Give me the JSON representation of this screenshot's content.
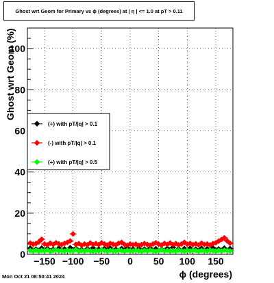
{
  "title": "Ghost wrt Geom for Primary vs ϕ (degrees) at |  η | <= 1.0 at pT > 0.11",
  "timestamp": "Mon Oct 21 08:50:41 2024",
  "chart_data": {
    "type": "scatter",
    "xlabel": "ϕ (degrees)",
    "ylabel": "Ghost wrt Geom (%)",
    "xlim": [
      -180,
      180
    ],
    "ylim": [
      0,
      110
    ],
    "x_ticks": [
      -150,
      -100,
      -50,
      0,
      50,
      100,
      150
    ],
    "y_ticks": [
      0,
      20,
      40,
      60,
      80,
      100
    ],
    "grid": true,
    "legend_position": "middle-left",
    "series": [
      {
        "name": "(+) with pT/|q| > 0.1",
        "color": "#000000",
        "marker": "diamond",
        "values": [
          [
            -175,
            3.0
          ],
          [
            -165,
            2.5
          ],
          [
            -155,
            3.0
          ],
          [
            -145,
            2.8
          ],
          [
            -135,
            2.4
          ],
          [
            -125,
            3.0
          ],
          [
            -115,
            2.6
          ],
          [
            -105,
            3.2
          ],
          [
            -95,
            2.9
          ],
          [
            -85,
            2.3
          ],
          [
            -75,
            2.7
          ],
          [
            -65,
            3.1
          ],
          [
            -55,
            2.5
          ],
          [
            -45,
            2.8
          ],
          [
            -35,
            3.0
          ],
          [
            -25,
            2.4
          ],
          [
            -15,
            2.8
          ],
          [
            -5,
            3.1
          ],
          [
            5,
            2.6
          ],
          [
            15,
            2.9
          ],
          [
            25,
            2.5
          ],
          [
            35,
            3.0
          ],
          [
            45,
            2.7
          ],
          [
            55,
            2.4
          ],
          [
            65,
            2.9
          ],
          [
            75,
            3.4
          ],
          [
            85,
            2.6
          ],
          [
            95,
            2.8
          ],
          [
            105,
            3.0
          ],
          [
            115,
            2.5
          ],
          [
            125,
            2.9
          ],
          [
            135,
            2.7
          ],
          [
            145,
            3.1
          ],
          [
            155,
            2.6
          ],
          [
            165,
            3.0
          ],
          [
            175,
            2.8
          ]
        ]
      },
      {
        "name": "(-) with pT/|q| > 0.1",
        "color": "#ff0000",
        "marker": "diamond",
        "values": [
          [
            -175,
            5.5
          ],
          [
            -170,
            4.9
          ],
          [
            -165,
            5.2
          ],
          [
            -160,
            6.0
          ],
          [
            -155,
            7.3
          ],
          [
            -150,
            5.0
          ],
          [
            -145,
            4.6
          ],
          [
            -140,
            5.4
          ],
          [
            -135,
            4.8
          ],
          [
            -130,
            5.6
          ],
          [
            -125,
            5.1
          ],
          [
            -120,
            4.7
          ],
          [
            -115,
            5.3
          ],
          [
            -110,
            5.8
          ],
          [
            -105,
            6.5
          ],
          [
            -100,
            9.9
          ],
          [
            -95,
            4.8
          ],
          [
            -90,
            5.2
          ],
          [
            -85,
            4.4
          ],
          [
            -80,
            5.0
          ],
          [
            -75,
            4.6
          ],
          [
            -70,
            5.5
          ],
          [
            -65,
            4.8
          ],
          [
            -60,
            5.2
          ],
          [
            -55,
            4.7
          ],
          [
            -50,
            5.6
          ],
          [
            -45,
            5.0
          ],
          [
            -40,
            4.5
          ],
          [
            -35,
            5.3
          ],
          [
            -30,
            4.9
          ],
          [
            -25,
            4.6
          ],
          [
            -20,
            5.4
          ],
          [
            -15,
            5.8
          ],
          [
            -10,
            4.8
          ],
          [
            -5,
            4.4
          ],
          [
            0,
            5.0
          ],
          [
            5,
            4.6
          ],
          [
            10,
            4.9
          ],
          [
            15,
            4.3
          ],
          [
            20,
            4.7
          ],
          [
            25,
            5.2
          ],
          [
            30,
            4.8
          ],
          [
            35,
            4.4
          ],
          [
            40,
            5.0
          ],
          [
            45,
            5.6
          ],
          [
            50,
            4.9
          ],
          [
            55,
            4.5
          ],
          [
            60,
            5.3
          ],
          [
            65,
            4.8
          ],
          [
            70,
            5.5
          ],
          [
            75,
            4.7
          ],
          [
            80,
            5.2
          ],
          [
            85,
            4.6
          ],
          [
            90,
            5.0
          ],
          [
            95,
            5.8
          ],
          [
            100,
            4.9
          ],
          [
            105,
            5.3
          ],
          [
            110,
            4.7
          ],
          [
            115,
            5.1
          ],
          [
            120,
            4.6
          ],
          [
            125,
            5.4
          ],
          [
            130,
            4.8
          ],
          [
            135,
            5.0
          ],
          [
            140,
            4.5
          ],
          [
            145,
            5.2
          ],
          [
            150,
            5.6
          ],
          [
            155,
            6.4
          ],
          [
            160,
            7.2
          ],
          [
            165,
            8.0
          ],
          [
            170,
            6.5
          ],
          [
            175,
            5.4
          ]
        ]
      },
      {
        "name": "(+) with pT/|q| > 0.5",
        "color": "#00ff00",
        "marker": "diamond",
        "values": [
          [
            -175,
            1.8
          ],
          [
            -170,
            1.6
          ],
          [
            -165,
            2.0
          ],
          [
            -160,
            1.5
          ],
          [
            -155,
            1.9
          ],
          [
            -150,
            1.7
          ],
          [
            -145,
            2.1
          ],
          [
            -140,
            1.4
          ],
          [
            -135,
            1.8
          ],
          [
            -130,
            2.2
          ],
          [
            -125,
            1.6
          ],
          [
            -120,
            1.9
          ],
          [
            -115,
            1.5
          ],
          [
            -110,
            2.0
          ],
          [
            -105,
            1.7
          ],
          [
            -100,
            1.6
          ],
          [
            -95,
            2.3
          ],
          [
            -90,
            1.5
          ],
          [
            -85,
            1.8
          ],
          [
            -80,
            1.6
          ],
          [
            -75,
            2.0
          ],
          [
            -70,
            1.7
          ],
          [
            -65,
            1.5
          ],
          [
            -60,
            1.9
          ],
          [
            -55,
            1.6
          ],
          [
            -50,
            2.1
          ],
          [
            -45,
            1.8
          ],
          [
            -40,
            1.5
          ],
          [
            -35,
            1.9
          ],
          [
            -30,
            1.7
          ],
          [
            -25,
            1.6
          ],
          [
            -20,
            2.0
          ],
          [
            -15,
            1.8
          ],
          [
            -10,
            1.5
          ],
          [
            -5,
            1.9
          ],
          [
            0,
            1.7
          ],
          [
            5,
            1.6
          ],
          [
            10,
            2.0
          ],
          [
            15,
            1.7
          ],
          [
            20,
            1.5
          ],
          [
            25,
            1.9
          ],
          [
            30,
            1.6
          ],
          [
            35,
            2.0
          ],
          [
            40,
            1.7
          ],
          [
            45,
            1.5
          ],
          [
            50,
            1.8
          ],
          [
            55,
            2.1
          ],
          [
            60,
            1.6
          ],
          [
            65,
            1.9
          ],
          [
            70,
            1.5
          ],
          [
            75,
            1.8
          ],
          [
            80,
            1.6
          ],
          [
            85,
            2.0
          ],
          [
            90,
            1.7
          ],
          [
            95,
            1.5
          ],
          [
            100,
            1.9
          ],
          [
            105,
            1.6
          ],
          [
            110,
            2.0
          ],
          [
            115,
            1.8
          ],
          [
            120,
            1.5
          ],
          [
            125,
            1.9
          ],
          [
            130,
            1.7
          ],
          [
            135,
            1.6
          ],
          [
            140,
            2.0
          ],
          [
            145,
            1.7
          ],
          [
            150,
            1.5
          ],
          [
            155,
            1.9
          ],
          [
            160,
            1.6
          ],
          [
            165,
            2.0
          ],
          [
            170,
            1.8
          ],
          [
            175,
            1.6
          ]
        ]
      }
    ]
  }
}
